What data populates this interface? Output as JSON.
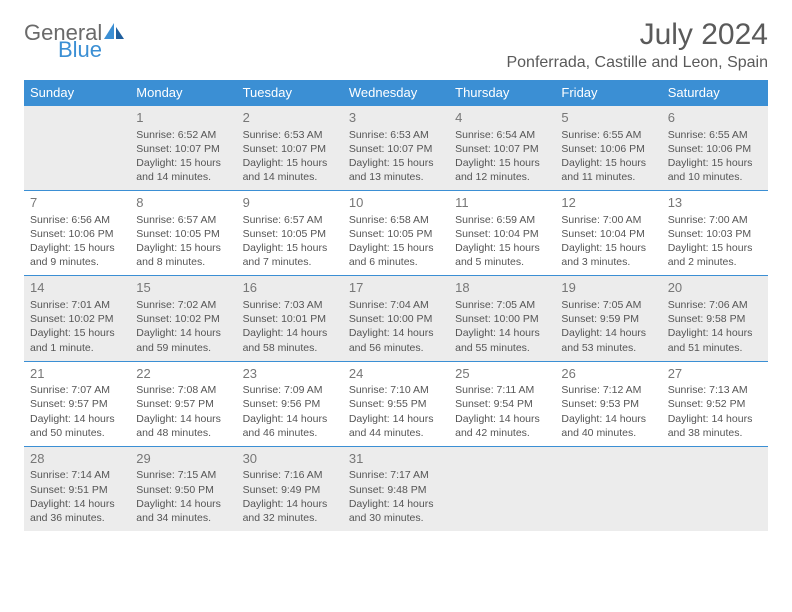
{
  "logo": {
    "text_top": "General",
    "text_bottom": "Blue"
  },
  "title": "July 2024",
  "location": "Ponferrada, Castille and Leon, Spain",
  "day_headers": [
    "Sunday",
    "Monday",
    "Tuesday",
    "Wednesday",
    "Thursday",
    "Friday",
    "Saturday"
  ],
  "header_bg": "#3b8fd4",
  "row_gray": "#ececec",
  "weeks": [
    [
      null,
      {
        "n": "1",
        "sr": "Sunrise: 6:52 AM",
        "ss": "Sunset: 10:07 PM",
        "dl": "Daylight: 15 hours and 14 minutes."
      },
      {
        "n": "2",
        "sr": "Sunrise: 6:53 AM",
        "ss": "Sunset: 10:07 PM",
        "dl": "Daylight: 15 hours and 14 minutes."
      },
      {
        "n": "3",
        "sr": "Sunrise: 6:53 AM",
        "ss": "Sunset: 10:07 PM",
        "dl": "Daylight: 15 hours and 13 minutes."
      },
      {
        "n": "4",
        "sr": "Sunrise: 6:54 AM",
        "ss": "Sunset: 10:07 PM",
        "dl": "Daylight: 15 hours and 12 minutes."
      },
      {
        "n": "5",
        "sr": "Sunrise: 6:55 AM",
        "ss": "Sunset: 10:06 PM",
        "dl": "Daylight: 15 hours and 11 minutes."
      },
      {
        "n": "6",
        "sr": "Sunrise: 6:55 AM",
        "ss": "Sunset: 10:06 PM",
        "dl": "Daylight: 15 hours and 10 minutes."
      }
    ],
    [
      {
        "n": "7",
        "sr": "Sunrise: 6:56 AM",
        "ss": "Sunset: 10:06 PM",
        "dl": "Daylight: 15 hours and 9 minutes."
      },
      {
        "n": "8",
        "sr": "Sunrise: 6:57 AM",
        "ss": "Sunset: 10:05 PM",
        "dl": "Daylight: 15 hours and 8 minutes."
      },
      {
        "n": "9",
        "sr": "Sunrise: 6:57 AM",
        "ss": "Sunset: 10:05 PM",
        "dl": "Daylight: 15 hours and 7 minutes."
      },
      {
        "n": "10",
        "sr": "Sunrise: 6:58 AM",
        "ss": "Sunset: 10:05 PM",
        "dl": "Daylight: 15 hours and 6 minutes."
      },
      {
        "n": "11",
        "sr": "Sunrise: 6:59 AM",
        "ss": "Sunset: 10:04 PM",
        "dl": "Daylight: 15 hours and 5 minutes."
      },
      {
        "n": "12",
        "sr": "Sunrise: 7:00 AM",
        "ss": "Sunset: 10:04 PM",
        "dl": "Daylight: 15 hours and 3 minutes."
      },
      {
        "n": "13",
        "sr": "Sunrise: 7:00 AM",
        "ss": "Sunset: 10:03 PM",
        "dl": "Daylight: 15 hours and 2 minutes."
      }
    ],
    [
      {
        "n": "14",
        "sr": "Sunrise: 7:01 AM",
        "ss": "Sunset: 10:02 PM",
        "dl": "Daylight: 15 hours and 1 minute."
      },
      {
        "n": "15",
        "sr": "Sunrise: 7:02 AM",
        "ss": "Sunset: 10:02 PM",
        "dl": "Daylight: 14 hours and 59 minutes."
      },
      {
        "n": "16",
        "sr": "Sunrise: 7:03 AM",
        "ss": "Sunset: 10:01 PM",
        "dl": "Daylight: 14 hours and 58 minutes."
      },
      {
        "n": "17",
        "sr": "Sunrise: 7:04 AM",
        "ss": "Sunset: 10:00 PM",
        "dl": "Daylight: 14 hours and 56 minutes."
      },
      {
        "n": "18",
        "sr": "Sunrise: 7:05 AM",
        "ss": "Sunset: 10:00 PM",
        "dl": "Daylight: 14 hours and 55 minutes."
      },
      {
        "n": "19",
        "sr": "Sunrise: 7:05 AM",
        "ss": "Sunset: 9:59 PM",
        "dl": "Daylight: 14 hours and 53 minutes."
      },
      {
        "n": "20",
        "sr": "Sunrise: 7:06 AM",
        "ss": "Sunset: 9:58 PM",
        "dl": "Daylight: 14 hours and 51 minutes."
      }
    ],
    [
      {
        "n": "21",
        "sr": "Sunrise: 7:07 AM",
        "ss": "Sunset: 9:57 PM",
        "dl": "Daylight: 14 hours and 50 minutes."
      },
      {
        "n": "22",
        "sr": "Sunrise: 7:08 AM",
        "ss": "Sunset: 9:57 PM",
        "dl": "Daylight: 14 hours and 48 minutes."
      },
      {
        "n": "23",
        "sr": "Sunrise: 7:09 AM",
        "ss": "Sunset: 9:56 PM",
        "dl": "Daylight: 14 hours and 46 minutes."
      },
      {
        "n": "24",
        "sr": "Sunrise: 7:10 AM",
        "ss": "Sunset: 9:55 PM",
        "dl": "Daylight: 14 hours and 44 minutes."
      },
      {
        "n": "25",
        "sr": "Sunrise: 7:11 AM",
        "ss": "Sunset: 9:54 PM",
        "dl": "Daylight: 14 hours and 42 minutes."
      },
      {
        "n": "26",
        "sr": "Sunrise: 7:12 AM",
        "ss": "Sunset: 9:53 PM",
        "dl": "Daylight: 14 hours and 40 minutes."
      },
      {
        "n": "27",
        "sr": "Sunrise: 7:13 AM",
        "ss": "Sunset: 9:52 PM",
        "dl": "Daylight: 14 hours and 38 minutes."
      }
    ],
    [
      {
        "n": "28",
        "sr": "Sunrise: 7:14 AM",
        "ss": "Sunset: 9:51 PM",
        "dl": "Daylight: 14 hours and 36 minutes."
      },
      {
        "n": "29",
        "sr": "Sunrise: 7:15 AM",
        "ss": "Sunset: 9:50 PM",
        "dl": "Daylight: 14 hours and 34 minutes."
      },
      {
        "n": "30",
        "sr": "Sunrise: 7:16 AM",
        "ss": "Sunset: 9:49 PM",
        "dl": "Daylight: 14 hours and 32 minutes."
      },
      {
        "n": "31",
        "sr": "Sunrise: 7:17 AM",
        "ss": "Sunset: 9:48 PM",
        "dl": "Daylight: 14 hours and 30 minutes."
      },
      null,
      null,
      null
    ]
  ]
}
